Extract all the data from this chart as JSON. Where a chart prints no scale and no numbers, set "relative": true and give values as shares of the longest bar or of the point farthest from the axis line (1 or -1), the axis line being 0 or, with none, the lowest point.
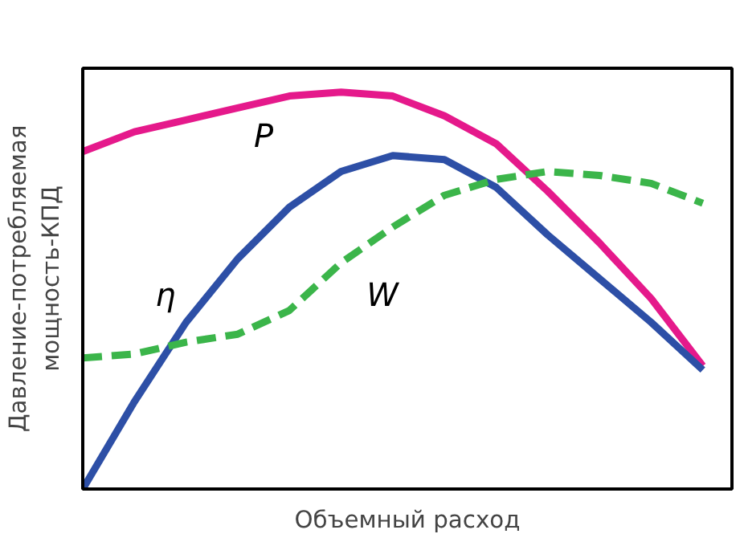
{
  "chart_data": {
    "type": "line",
    "relative": true,
    "tick_labels": false,
    "xlabel": "Объемный расход",
    "ylabel": "Давление-потребляемая\nмощность-КПД",
    "categories": [
      null,
      null,
      null,
      null,
      null,
      null,
      null,
      null,
      null,
      null,
      null,
      null,
      null
    ],
    "series": [
      {
        "name": "P",
        "color": "#e5198b",
        "line_style": "solid",
        "values": [
          0.85,
          0.9,
          0.93,
          0.96,
          0.99,
          1,
          0.99,
          0.94,
          0.87,
          0.75,
          0.62,
          0.48,
          0.31
        ]
      },
      {
        "name": "η",
        "color": "#2d4fa6",
        "line_style": "solid",
        "values": [
          0,
          0.22,
          0.42,
          0.58,
          0.71,
          0.8,
          0.84,
          0.83,
          0.76,
          0.64,
          0.53,
          0.42,
          0.3
        ]
      },
      {
        "name": "W",
        "color": "#3bb54a",
        "line_style": "dashed",
        "values": [
          0.33,
          0.34,
          0.37,
          0.39,
          0.45,
          0.57,
          0.66,
          0.74,
          0.78,
          0.8,
          0.79,
          0.77,
          0.72
        ]
      }
    ]
  }
}
